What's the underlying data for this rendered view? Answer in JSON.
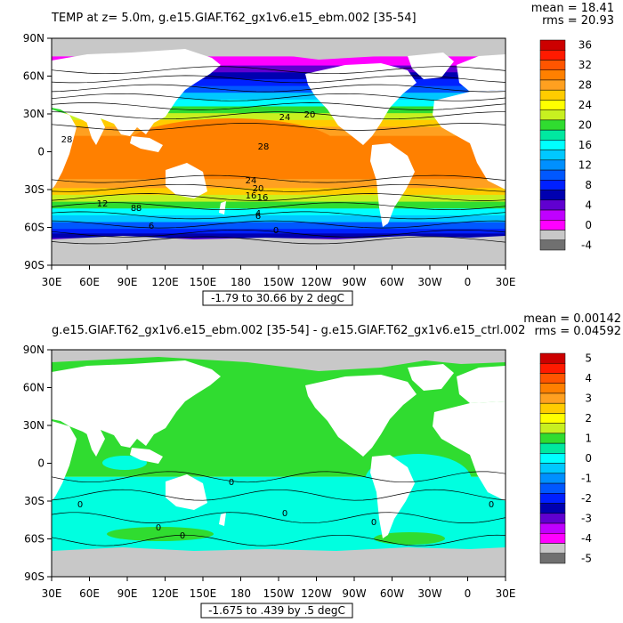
{
  "panels": [
    {
      "id": "top",
      "title": "TEMP at z=    5.0m, g.e15.GIAF.T62_gx1v6.e15_ebm.002 [35-54]",
      "mean_text": "mean = 18.41",
      "rms_text": "rms = 20.93",
      "range_text": "-1.79 to 30.66 by 2 degC",
      "colorbar_labels": [
        "36",
        "32",
        "28",
        "24",
        "20",
        "16",
        "12",
        "8",
        "4",
        "0",
        "-4"
      ],
      "colorbar_colors": [
        "#cc0000",
        "#ff1a00",
        "#ff5500",
        "#ff8000",
        "#ffa020",
        "#ffcc00",
        "#ffff00",
        "#c8f020",
        "#30dc30",
        "#00e8a0",
        "#00ffff",
        "#00c8ff",
        "#0090ff",
        "#0058ff",
        "#0020ff",
        "#0000b0",
        "#6000d0",
        "#c000ff",
        "#ff00ff",
        "#c8c8c8",
        "#707070"
      ],
      "contour_labels": [
        "28",
        "24",
        "20",
        "28",
        "24",
        "20",
        "16",
        "12",
        "8",
        "6",
        "4",
        "0",
        "6",
        "16",
        "12",
        "8"
      ]
    },
    {
      "id": "bottom",
      "title": "g.e15.GIAF.T62_gx1v6.e15_ebm.002 [35-54] - g.e15.GIAF.T62_gx1v6.e15_ctrl.002",
      "mean_text": "mean = 0.00142",
      "rms_text": "rms = 0.04592",
      "range_text": "-1.675 to .439 by .5 degC",
      "colorbar_labels": [
        "5",
        "4",
        "3",
        "2",
        "1",
        "0",
        "-1",
        "-2",
        "-3",
        "-4",
        "-5"
      ],
      "colorbar_colors": [
        "#cc0000",
        "#ff1a00",
        "#ff5500",
        "#ff8000",
        "#ffa020",
        "#ffcc00",
        "#ffff00",
        "#c8f020",
        "#30dc30",
        "#00e8a0",
        "#00ffff",
        "#00c8ff",
        "#0090ff",
        "#0058ff",
        "#0020ff",
        "#0000b0",
        "#6000d0",
        "#c000ff",
        "#ff00ff",
        "#c8c8c8",
        "#707070"
      ],
      "contour_labels": [
        "0",
        "0",
        "0",
        "0",
        "0",
        "0",
        "0"
      ]
    }
  ],
  "axes": {
    "lat_labels": [
      "90N",
      "60N",
      "30N",
      "0",
      "30S",
      "60S",
      "90S"
    ],
    "lon_labels": [
      "30E",
      "60E",
      "90E",
      "120E",
      "150E",
      "180",
      "150W",
      "120W",
      "90W",
      "60W",
      "30W",
      "0",
      "30E"
    ]
  },
  "colors": {
    "land": "#ffffff",
    "missing": "#c8c8c8",
    "frame": "#000000"
  }
}
